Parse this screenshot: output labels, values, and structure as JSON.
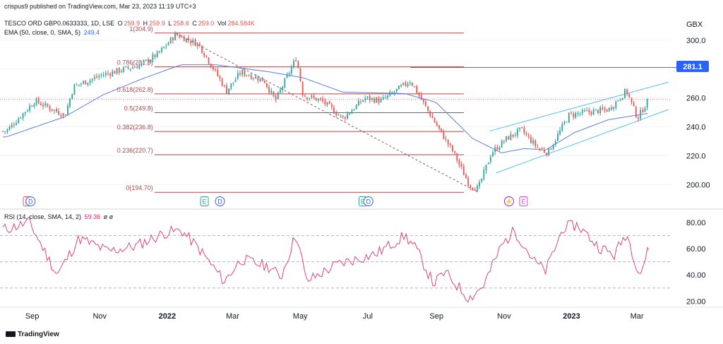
{
  "watermark": "crispus9 published on TradingView.com, Mar 23, 2023 11:19 UTC+3",
  "legend": {
    "symbol": "TESCO ORD GBP0.0633333, 1D, LSE",
    "o_label": "O",
    "o_value": "259.9",
    "h_label": "H",
    "h_value": "259.9",
    "l_label": "L",
    "l_value": "258.6",
    "c_label": "C",
    "c_value": "259.0",
    "vol_label": "Vol",
    "vol_value": "284.584K",
    "ema_label": "EMA (50, close, 0, SMA, 5)",
    "ema_value": "249.4",
    "rsi_label": "RSI (14, close, SMA, 14, 2)",
    "rsi_value": "59.36",
    "rsi_extra": "ø ø"
  },
  "currency": "GBX",
  "price_axis_ticks": [
    "300.0",
    "280.0",
    "260.0",
    "240.0",
    "220.0",
    "200.00"
  ],
  "price_tick_values": [
    300,
    280,
    260,
    240,
    220,
    200
  ],
  "horizontal_line_label": "281.1",
  "horizontal_line_value": 281.1,
  "fib_levels": [
    {
      "label": "1(304.9)",
      "value": 304.9
    },
    {
      "label": "0.786(281.5)",
      "value": 281.5
    },
    {
      "label": "0.618(262.8)",
      "value": 262.8
    },
    {
      "label": "0.5(249.8)",
      "value": 249.8
    },
    {
      "label": "0.382(236.8)",
      "value": 236.8
    },
    {
      "label": "0.236(220.7)",
      "value": 220.7
    },
    {
      "label": "0(194.70)",
      "value": 194.7
    }
  ],
  "rsi_axis_ticks": [
    "80.00",
    "60.00",
    "40.00",
    "20.00"
  ],
  "rsi_tick_values": [
    80,
    60,
    40,
    20
  ],
  "time_axis": [
    "Sep",
    "Nov",
    "2022",
    "Mar",
    "May",
    "Jul",
    "Sep",
    "Nov",
    "2023",
    "Mar"
  ],
  "event_markers": [
    {
      "glyph": "E",
      "kind": "earnings-red",
      "day": 22
    },
    {
      "glyph": "D",
      "kind": "dividend",
      "day": 25
    },
    {
      "glyph": "E",
      "kind": "earnings",
      "day": 182
    },
    {
      "glyph": "D",
      "kind": "dividend",
      "day": 196
    },
    {
      "glyph": "E",
      "kind": "earnings",
      "day": 325
    },
    {
      "glyph": "D",
      "kind": "dividend",
      "day": 330
    },
    {
      "glyph": "⚡",
      "kind": "split",
      "day": 457
    },
    {
      "glyph": "E",
      "kind": "earnings-upcoming",
      "day": 470
    }
  ],
  "footer_brand": "TradingView",
  "colors": {
    "up": "#26a69a",
    "down": "#ef5350",
    "ema": "#5b7de8",
    "fib": "#a84a4a",
    "channel": "#4fc3f7",
    "hline": "#3f6fd6",
    "rsi": "#e0457b",
    "grid": "#f0f3fa",
    "axis_text": "#131722"
  },
  "chart_data": [
    {
      "type": "candlestick",
      "title": "TESCO ORD GBP0.0633333, 1D, LSE",
      "ylabel": "GBX",
      "ylim": [
        186,
        318
      ],
      "x_range_dates": [
        "2021-08-17",
        "2023-03-23"
      ],
      "close_anchors": [
        {
          "date": "2021-08-20",
          "value": 237
        },
        {
          "date": "2021-09-15",
          "value": 258
        },
        {
          "date": "2021-10-12",
          "value": 248
        },
        {
          "date": "2021-10-20",
          "value": 268
        },
        {
          "date": "2021-11-15",
          "value": 276
        },
        {
          "date": "2021-12-20",
          "value": 283
        },
        {
          "date": "2022-01-05",
          "value": 291
        },
        {
          "date": "2022-01-20",
          "value": 304
        },
        {
          "date": "2022-02-10",
          "value": 297
        },
        {
          "date": "2022-03-07",
          "value": 265
        },
        {
          "date": "2022-03-20",
          "value": 278
        },
        {
          "date": "2022-04-10",
          "value": 272
        },
        {
          "date": "2022-04-20",
          "value": 258
        },
        {
          "date": "2022-05-09",
          "value": 288
        },
        {
          "date": "2022-05-15",
          "value": 262
        },
        {
          "date": "2022-06-01",
          "value": 258
        },
        {
          "date": "2022-06-20",
          "value": 246
        },
        {
          "date": "2022-07-10",
          "value": 260
        },
        {
          "date": "2022-07-25",
          "value": 258
        },
        {
          "date": "2022-08-20",
          "value": 272
        },
        {
          "date": "2022-09-01",
          "value": 256
        },
        {
          "date": "2022-09-15",
          "value": 238
        },
        {
          "date": "2022-09-28",
          "value": 222
        },
        {
          "date": "2022-10-12",
          "value": 200
        },
        {
          "date": "2022-10-20",
          "value": 197
        },
        {
          "date": "2022-11-01",
          "value": 222
        },
        {
          "date": "2022-11-15",
          "value": 232
        },
        {
          "date": "2022-11-28",
          "value": 238
        },
        {
          "date": "2022-12-12",
          "value": 226
        },
        {
          "date": "2022-12-22",
          "value": 222
        },
        {
          "date": "2023-01-10",
          "value": 248
        },
        {
          "date": "2023-01-25",
          "value": 250
        },
        {
          "date": "2023-02-15",
          "value": 252
        },
        {
          "date": "2023-03-03",
          "value": 265
        },
        {
          "date": "2023-03-13",
          "value": 246
        },
        {
          "date": "2023-03-23",
          "value": 259
        }
      ],
      "ema_anchors": [
        {
          "date": "2021-08-20",
          "value": 233
        },
        {
          "date": "2021-10-12",
          "value": 247
        },
        {
          "date": "2021-11-15",
          "value": 262
        },
        {
          "date": "2021-12-20",
          "value": 273
        },
        {
          "date": "2022-01-25",
          "value": 283
        },
        {
          "date": "2022-02-25",
          "value": 283
        },
        {
          "date": "2022-04-15",
          "value": 278
        },
        {
          "date": "2022-05-15",
          "value": 274
        },
        {
          "date": "2022-06-20",
          "value": 264
        },
        {
          "date": "2022-08-15",
          "value": 263
        },
        {
          "date": "2022-09-12",
          "value": 257
        },
        {
          "date": "2022-10-15",
          "value": 232
        },
        {
          "date": "2022-11-10",
          "value": 222
        },
        {
          "date": "2022-12-01",
          "value": 225
        },
        {
          "date": "2022-12-20",
          "value": 224
        },
        {
          "date": "2023-01-15",
          "value": 236
        },
        {
          "date": "2023-02-15",
          "value": 245
        },
        {
          "date": "2023-03-23",
          "value": 249.4
        }
      ],
      "fib_retracement": {
        "from": {
          "date": "2022-01-20",
          "value": 304.9
        },
        "to": {
          "date": "2022-10-20",
          "value": 194.7
        }
      },
      "horizontal_line": {
        "from_date": "2022-08-20",
        "value": 281.1
      },
      "channel_upper": [
        {
          "date": "2022-10-30",
          "value": 237
        },
        {
          "date": "2023-04-10",
          "value": 271
        }
      ],
      "channel_lower": [
        {
          "date": "2022-11-05",
          "value": 208
        },
        {
          "date": "2023-04-10",
          "value": 252
        }
      ],
      "last_value": 259.0
    },
    {
      "type": "line",
      "title": "RSI (14, close, SMA, 14, 2)",
      "ylim": [
        18,
        88
      ],
      "bands": [
        70,
        50,
        30
      ],
      "anchors": [
        {
          "date": "2021-08-20",
          "value": 75
        },
        {
          "date": "2021-09-10",
          "value": 80
        },
        {
          "date": "2021-10-05",
          "value": 40
        },
        {
          "date": "2021-10-25",
          "value": 68
        },
        {
          "date": "2021-11-20",
          "value": 58
        },
        {
          "date": "2021-12-15",
          "value": 62
        },
        {
          "date": "2022-01-10",
          "value": 72
        },
        {
          "date": "2022-01-25",
          "value": 74
        },
        {
          "date": "2022-02-10",
          "value": 60
        },
        {
          "date": "2022-03-05",
          "value": 35
        },
        {
          "date": "2022-03-20",
          "value": 52
        },
        {
          "date": "2022-04-15",
          "value": 46
        },
        {
          "date": "2022-04-25",
          "value": 38
        },
        {
          "date": "2022-05-09",
          "value": 72
        },
        {
          "date": "2022-05-18",
          "value": 35
        },
        {
          "date": "2022-06-15",
          "value": 48
        },
        {
          "date": "2022-07-20",
          "value": 56
        },
        {
          "date": "2022-08-15",
          "value": 70
        },
        {
          "date": "2022-08-25",
          "value": 60
        },
        {
          "date": "2022-09-10",
          "value": 33
        },
        {
          "date": "2022-09-20",
          "value": 42
        },
        {
          "date": "2022-10-12",
          "value": 22
        },
        {
          "date": "2022-10-25",
          "value": 32
        },
        {
          "date": "2022-11-10",
          "value": 62
        },
        {
          "date": "2022-11-22",
          "value": 74
        },
        {
          "date": "2022-12-10",
          "value": 50
        },
        {
          "date": "2022-12-20",
          "value": 43
        },
        {
          "date": "2023-01-05",
          "value": 76
        },
        {
          "date": "2023-01-18",
          "value": 78
        },
        {
          "date": "2023-02-05",
          "value": 62
        },
        {
          "date": "2023-02-20",
          "value": 55
        },
        {
          "date": "2023-03-03",
          "value": 72
        },
        {
          "date": "2023-03-15",
          "value": 40
        },
        {
          "date": "2023-03-23",
          "value": 59.36
        }
      ],
      "last_value": 59.36
    }
  ]
}
